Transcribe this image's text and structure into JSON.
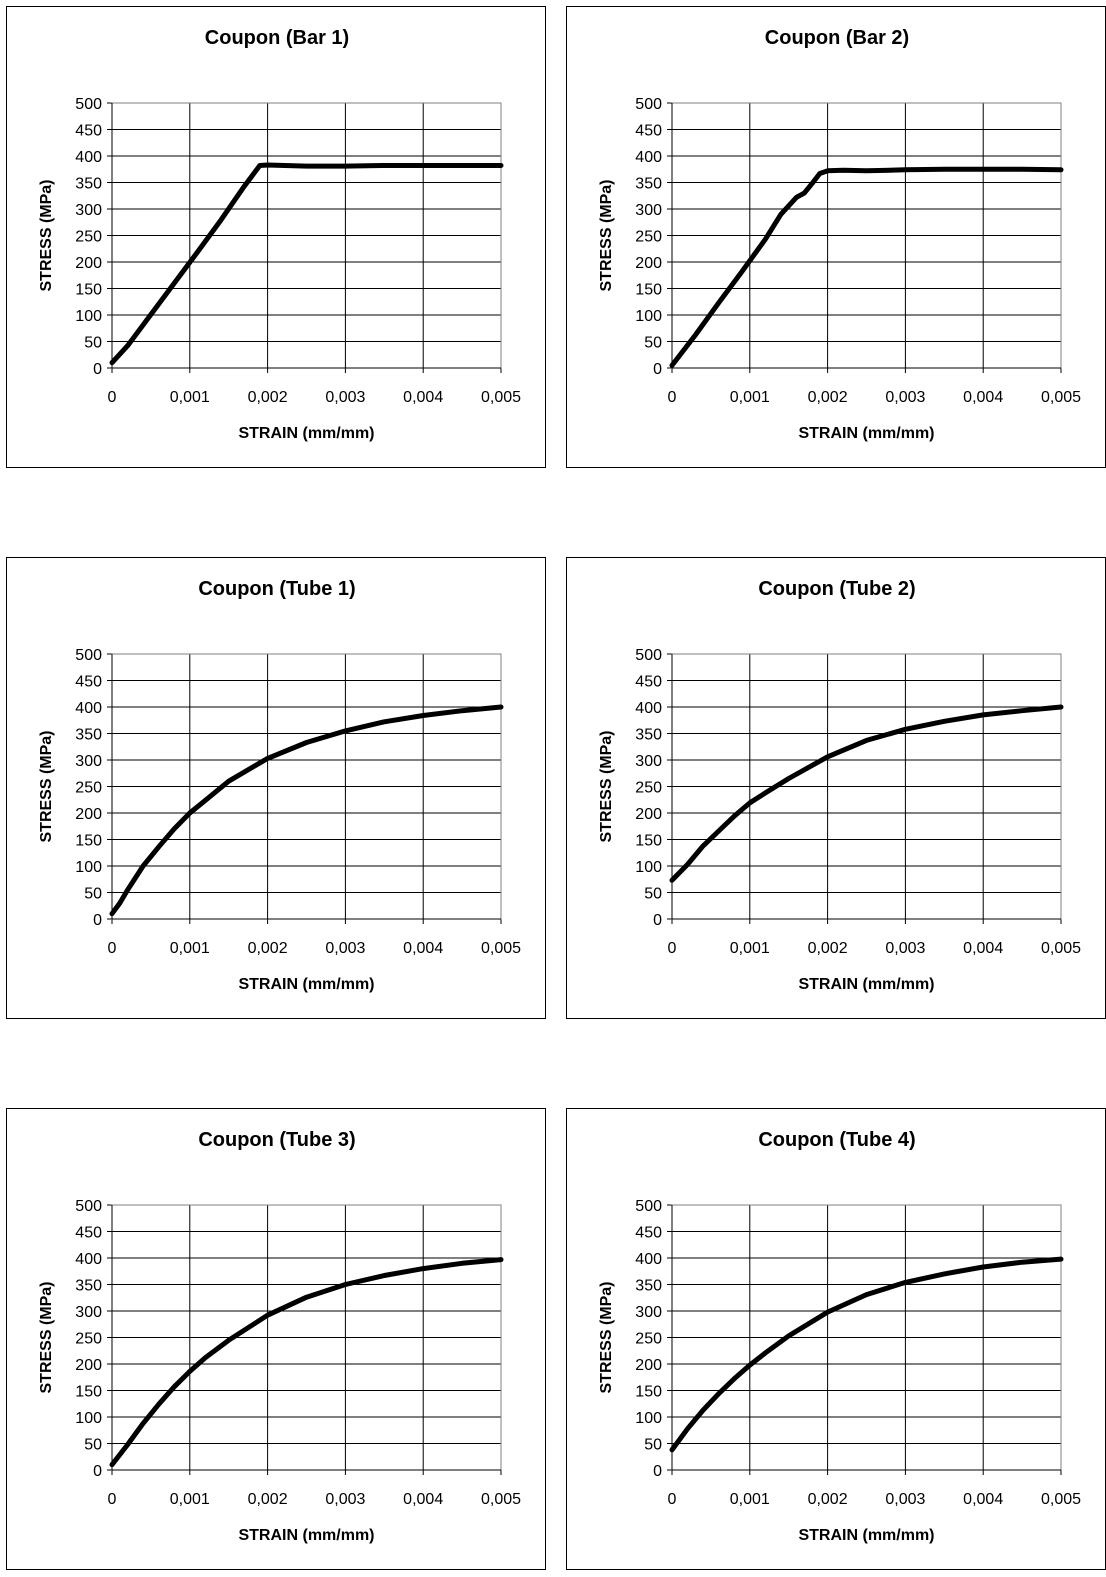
{
  "charts": [
    {
      "title": "Coupon (Bar 1)",
      "xlabel": "STRAIN (mm/mm)",
      "ylabel": "STRESS (MPa)",
      "x_ticks": [
        "0",
        "0,001",
        "0,002",
        "0,003",
        "0,004",
        "0,005"
      ],
      "y_ticks": [
        "0",
        "50",
        "100",
        "150",
        "200",
        "250",
        "300",
        "350",
        "400",
        "450",
        "500"
      ]
    },
    {
      "title": "Coupon (Bar 2)",
      "xlabel": "STRAIN (mm/mm)",
      "ylabel": "STRESS (MPa)",
      "x_ticks": [
        "0",
        "0,001",
        "0,002",
        "0,003",
        "0,004",
        "0,005"
      ],
      "y_ticks": [
        "0",
        "50",
        "100",
        "150",
        "200",
        "250",
        "300",
        "350",
        "400",
        "450",
        "500"
      ]
    },
    {
      "title": "Coupon (Tube 1)",
      "xlabel": "STRAIN (mm/mm)",
      "ylabel": "STRESS (MPa)",
      "x_ticks": [
        "0",
        "0,001",
        "0,002",
        "0,003",
        "0,004",
        "0,005"
      ],
      "y_ticks": [
        "0",
        "50",
        "100",
        "150",
        "200",
        "250",
        "300",
        "350",
        "400",
        "450",
        "500"
      ]
    },
    {
      "title": "Coupon (Tube 2)",
      "xlabel": "STRAIN (mm/mm)",
      "ylabel": "STRESS (MPa)",
      "x_ticks": [
        "0",
        "0,001",
        "0,002",
        "0,003",
        "0,004",
        "0,005"
      ],
      "y_ticks": [
        "0",
        "50",
        "100",
        "150",
        "200",
        "250",
        "300",
        "350",
        "400",
        "450",
        "500"
      ]
    },
    {
      "title": "Coupon (Tube 3)",
      "xlabel": "STRAIN (mm/mm)",
      "ylabel": "STRESS (MPa)",
      "x_ticks": [
        "0",
        "0,001",
        "0,002",
        "0,003",
        "0,004",
        "0,005"
      ],
      "y_ticks": [
        "0",
        "50",
        "100",
        "150",
        "200",
        "250",
        "300",
        "350",
        "400",
        "450",
        "500"
      ]
    },
    {
      "title": "Coupon (Tube 4)",
      "xlabel": "STRAIN (mm/mm)",
      "ylabel": "STRESS (MPa)",
      "x_ticks": [
        "0",
        "0,001",
        "0,002",
        "0,003",
        "0,004",
        "0,005"
      ],
      "y_ticks": [
        "0",
        "50",
        "100",
        "150",
        "200",
        "250",
        "300",
        "350",
        "400",
        "450",
        "500"
      ]
    }
  ],
  "chart_data": [
    {
      "type": "line",
      "title": "Coupon (Bar 1)",
      "xlabel": "STRAIN (mm/mm)",
      "ylabel": "STRESS (MPa)",
      "xlim": [
        0,
        0.005
      ],
      "ylim": [
        0,
        500
      ],
      "grid": true,
      "line_color": "#000000",
      "series": [
        {
          "x": [
            0,
            0.0002,
            0.0005,
            0.0008,
            0.0011,
            0.0014,
            0.0017,
            0.0019,
            0.002,
            0.0025,
            0.003,
            0.0035,
            0.004,
            0.0045,
            0.005
          ],
          "y": [
            10,
            42,
            101,
            160,
            219,
            279,
            343,
            382,
            383,
            381,
            381,
            382,
            382,
            382,
            382
          ]
        }
      ]
    },
    {
      "type": "line",
      "title": "Coupon (Bar 2)",
      "xlabel": "STRAIN (mm/mm)",
      "ylabel": "STRESS (MPa)",
      "xlim": [
        0,
        0.005
      ],
      "ylim": [
        0,
        500
      ],
      "grid": true,
      "line_color": "#000000",
      "series": [
        {
          "x": [
            0,
            0.0003,
            0.0006,
            0.0009,
            0.0012,
            0.0014,
            0.0016,
            0.0017,
            0.0018,
            0.0019,
            0.002,
            0.0022,
            0.0025,
            0.003,
            0.0035,
            0.004,
            0.0045,
            0.005
          ],
          "y": [
            5,
            62,
            123,
            182,
            243,
            290,
            322,
            330,
            348,
            367,
            372,
            373,
            372,
            374,
            375,
            375,
            375,
            374
          ]
        }
      ]
    },
    {
      "type": "line",
      "title": "Coupon (Tube 1)",
      "xlabel": "STRAIN (mm/mm)",
      "ylabel": "STRESS (MPa)",
      "xlim": [
        0,
        0.005
      ],
      "ylim": [
        0,
        500
      ],
      "grid": true,
      "line_color": "#000000",
      "series": [
        {
          "x": [
            0,
            0.0001,
            0.0002,
            0.0004,
            0.0006,
            0.0008,
            0.001,
            0.0012,
            0.0015,
            0.002,
            0.0025,
            0.003,
            0.0035,
            0.004,
            0.0045,
            0.005
          ],
          "y": [
            10,
            30,
            55,
            100,
            136,
            170,
            200,
            224,
            260,
            303,
            333,
            355,
            372,
            384,
            393,
            400
          ]
        }
      ]
    },
    {
      "type": "line",
      "title": "Coupon (Tube 2)",
      "xlabel": "STRAIN (mm/mm)",
      "ylabel": "STRESS (MPa)",
      "xlim": [
        0,
        0.005
      ],
      "ylim": [
        0,
        500
      ],
      "grid": true,
      "line_color": "#000000",
      "series": [
        {
          "x": [
            0,
            0.0002,
            0.0004,
            0.0006,
            0.0008,
            0.001,
            0.0012,
            0.0015,
            0.002,
            0.0025,
            0.003,
            0.0035,
            0.004,
            0.0045,
            0.005
          ],
          "y": [
            73,
            103,
            138,
            166,
            194,
            219,
            238,
            265,
            306,
            337,
            358,
            373,
            385,
            393,
            400
          ]
        }
      ]
    },
    {
      "type": "line",
      "title": "Coupon (Tube 3)",
      "xlabel": "STRAIN (mm/mm)",
      "ylabel": "STRESS (MPa)",
      "xlim": [
        0,
        0.005
      ],
      "ylim": [
        0,
        500
      ],
      "grid": true,
      "line_color": "#000000",
      "series": [
        {
          "x": [
            0,
            0.0002,
            0.0004,
            0.0006,
            0.0008,
            0.001,
            0.0012,
            0.0015,
            0.002,
            0.0025,
            0.003,
            0.0035,
            0.004,
            0.0045,
            0.005
          ],
          "y": [
            10,
            48,
            88,
            124,
            157,
            186,
            212,
            245,
            292,
            326,
            350,
            367,
            380,
            390,
            397
          ]
        }
      ]
    },
    {
      "type": "line",
      "title": "Coupon (Tube 4)",
      "xlabel": "STRAIN (mm/mm)",
      "ylabel": "STRESS (MPa)",
      "xlim": [
        0,
        0.005
      ],
      "ylim": [
        0,
        500
      ],
      "grid": true,
      "line_color": "#000000",
      "series": [
        {
          "x": [
            0,
            0.0002,
            0.0004,
            0.0006,
            0.0008,
            0.001,
            0.0012,
            0.0015,
            0.002,
            0.0025,
            0.003,
            0.0035,
            0.004,
            0.0045,
            0.005
          ],
          "y": [
            38,
            78,
            113,
            144,
            172,
            198,
            221,
            253,
            298,
            331,
            354,
            370,
            383,
            392,
            398
          ]
        }
      ]
    }
  ]
}
